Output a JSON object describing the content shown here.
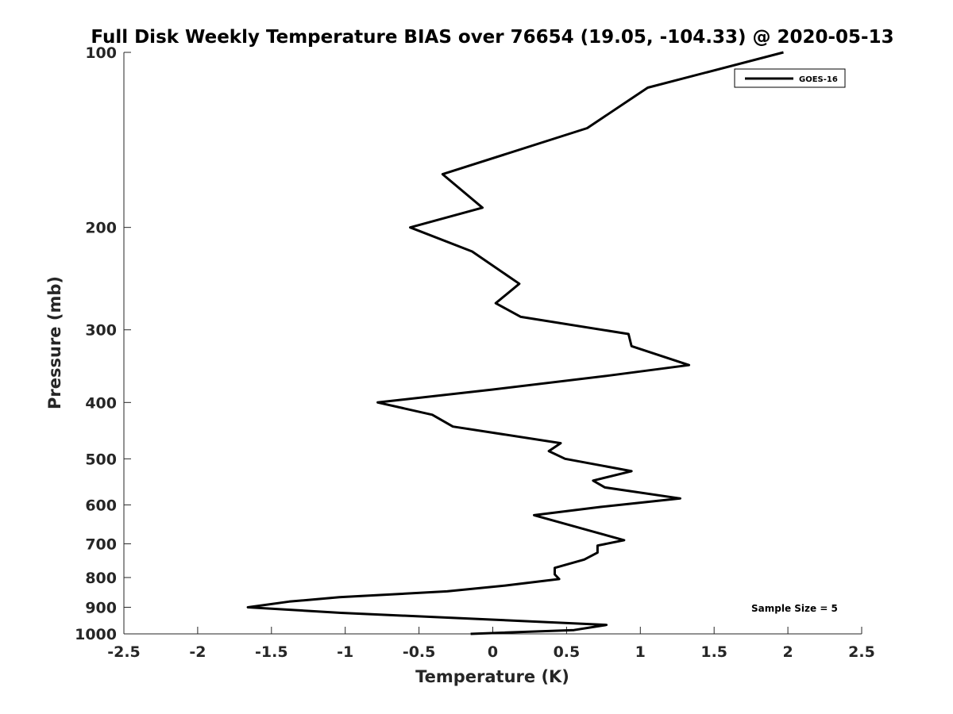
{
  "chart_data": {
    "type": "line",
    "title": "Full Disk Weekly Temperature BIAS over 76654 (19.05, -104.33) @ 2020-05-13",
    "xlabel": "Temperature (K)",
    "ylabel": "Pressure (mb)",
    "xlim": [
      -2.5,
      2.5
    ],
    "ylim": [
      100,
      1000
    ],
    "y_scale": "log",
    "y_reversed": true,
    "x_ticks": [
      -2.5,
      -2,
      -1.5,
      -1,
      -0.5,
      0,
      0.5,
      1,
      1.5,
      2,
      2.5
    ],
    "x_tick_labels": [
      "-2.5",
      "-2",
      "-1.5",
      "-1",
      "-0.5",
      "0",
      "0.5",
      "1",
      "1.5",
      "2",
      "2.5"
    ],
    "y_ticks": [
      100,
      200,
      300,
      400,
      500,
      600,
      700,
      800,
      900,
      1000
    ],
    "y_tick_labels": [
      "100",
      "200",
      "300",
      "400",
      "500",
      "600",
      "700",
      "800",
      "900",
      "1000"
    ],
    "grid": false,
    "legend_position": "top-right",
    "annotation": "Sample Size = 5",
    "series": [
      {
        "name": "GOES-16",
        "color": "#000000",
        "points": [
          {
            "x": 1.97,
            "y": 100
          },
          {
            "x": 1.05,
            "y": 115
          },
          {
            "x": 0.64,
            "y": 135
          },
          {
            "x": -0.34,
            "y": 162
          },
          {
            "x": -0.07,
            "y": 185
          },
          {
            "x": -0.56,
            "y": 200
          },
          {
            "x": -0.14,
            "y": 220
          },
          {
            "x": 0.18,
            "y": 250
          },
          {
            "x": 0.02,
            "y": 270
          },
          {
            "x": 0.19,
            "y": 285
          },
          {
            "x": 0.92,
            "y": 305
          },
          {
            "x": 0.94,
            "y": 320
          },
          {
            "x": 1.33,
            "y": 345
          },
          {
            "x": 0.77,
            "y": 360
          },
          {
            "x": 0.0,
            "y": 380
          },
          {
            "x": -0.78,
            "y": 400
          },
          {
            "x": -0.41,
            "y": 420
          },
          {
            "x": -0.27,
            "y": 440
          },
          {
            "x": 0.46,
            "y": 470
          },
          {
            "x": 0.38,
            "y": 485
          },
          {
            "x": 0.49,
            "y": 500
          },
          {
            "x": 0.94,
            "y": 525
          },
          {
            "x": 0.68,
            "y": 545
          },
          {
            "x": 0.76,
            "y": 560
          },
          {
            "x": 1.27,
            "y": 585
          },
          {
            "x": 0.73,
            "y": 605
          },
          {
            "x": 0.28,
            "y": 625
          },
          {
            "x": 0.66,
            "y": 665
          },
          {
            "x": 0.89,
            "y": 690
          },
          {
            "x": 0.71,
            "y": 705
          },
          {
            "x": 0.71,
            "y": 725
          },
          {
            "x": 0.62,
            "y": 745
          },
          {
            "x": 0.42,
            "y": 770
          },
          {
            "x": 0.42,
            "y": 790
          },
          {
            "x": 0.45,
            "y": 805
          },
          {
            "x": 0.1,
            "y": 825
          },
          {
            "x": -0.31,
            "y": 845
          },
          {
            "x": -1.04,
            "y": 865
          },
          {
            "x": -1.38,
            "y": 880
          },
          {
            "x": -1.66,
            "y": 900
          },
          {
            "x": -1.03,
            "y": 920
          },
          {
            "x": -0.01,
            "y": 945
          },
          {
            "x": 0.77,
            "y": 965
          },
          {
            "x": 0.55,
            "y": 985
          },
          {
            "x": -0.15,
            "y": 1000
          }
        ]
      }
    ]
  }
}
